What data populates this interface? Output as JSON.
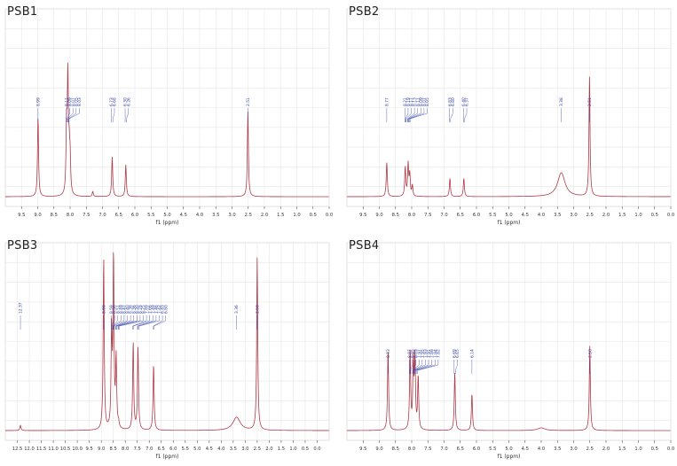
{
  "chart_data": [
    {
      "type": "line",
      "title": "PSB1",
      "xlabel": "f1 (ppm)",
      "xlim": [
        10.0,
        0.0
      ],
      "x_reversed": true,
      "xticks": [
        9.5,
        9.0,
        8.5,
        8.0,
        7.5,
        7.0,
        6.5,
        6.0,
        5.5,
        5.0,
        4.5,
        4.0,
        3.5,
        3.0,
        2.5,
        2.0,
        1.5,
        1.0,
        0.5,
        0.0
      ],
      "grid": true,
      "line_color": "#b03a48",
      "label_color": "#3344aa",
      "peaks": [
        {
          "x": 8.99,
          "y": 0.3
        },
        {
          "x": 8.11,
          "y": 0.24
        },
        {
          "x": 8.07,
          "y": 0.43
        },
        {
          "x": 8.03,
          "y": 0.14
        },
        {
          "x": 8.0,
          "y": 0.13
        },
        {
          "x": 7.3,
          "y": 0.02
        },
        {
          "x": 6.7,
          "y": 0.15
        },
        {
          "x": 6.28,
          "y": 0.12
        },
        {
          "x": 2.51,
          "y": 0.32
        }
      ],
      "peak_labels": [
        {
          "x": 8.99,
          "text": "8.99"
        },
        {
          "x": 8.11,
          "text": "8.11"
        },
        {
          "x": 8.09,
          "text": "8.09"
        },
        {
          "x": 8.07,
          "text": "8.07"
        },
        {
          "x": 8.05,
          "text": "8.05"
        },
        {
          "x": 8.03,
          "text": "8.03"
        },
        {
          "x": 6.73,
          "text": "6.73"
        },
        {
          "x": 6.68,
          "text": "6.68"
        },
        {
          "x": 6.3,
          "text": "6.30"
        },
        {
          "x": 6.26,
          "text": "6.26"
        },
        {
          "x": 2.51,
          "text": "2.51"
        }
      ]
    },
    {
      "type": "line",
      "title": "PSB2",
      "xlabel": "f1 (ppm)",
      "xlim": [
        10.0,
        0.0
      ],
      "x_reversed": true,
      "xticks": [
        9.5,
        9.0,
        8.5,
        8.0,
        7.5,
        7.0,
        6.5,
        6.0,
        5.5,
        5.0,
        4.5,
        4.0,
        3.5,
        3.0,
        2.5,
        2.0,
        1.5,
        1.0,
        0.5,
        0.0
      ],
      "grid": true,
      "line_color": "#b03a48",
      "label_color": "#3344aa",
      "peaks": [
        {
          "x": 8.77,
          "y": 0.13
        },
        {
          "x": 8.2,
          "y": 0.11
        },
        {
          "x": 8.11,
          "y": 0.12
        },
        {
          "x": 8.06,
          "y": 0.08
        },
        {
          "x": 7.98,
          "y": 0.04
        },
        {
          "x": 6.82,
          "y": 0.07
        },
        {
          "x": 6.39,
          "y": 0.07
        },
        {
          "x": 3.38,
          "y": 0.09,
          "broad": true
        },
        {
          "x": 2.51,
          "y": 0.45
        }
      ],
      "peak_labels": [
        {
          "x": 8.77,
          "text": "8.77"
        },
        {
          "x": 8.21,
          "text": "8.21"
        },
        {
          "x": 8.19,
          "text": "8.19"
        },
        {
          "x": 8.17,
          "text": "8.17"
        },
        {
          "x": 8.13,
          "text": "8.13"
        },
        {
          "x": 8.11,
          "text": "8.11"
        },
        {
          "x": 8.09,
          "text": "8.09"
        },
        {
          "x": 8.07,
          "text": "8.07"
        },
        {
          "x": 8.05,
          "text": "8.05"
        },
        {
          "x": 6.83,
          "text": "6.83"
        },
        {
          "x": 6.8,
          "text": "6.80"
        },
        {
          "x": 6.4,
          "text": "6.40"
        },
        {
          "x": 6.37,
          "text": "6.37"
        },
        {
          "x": 3.38,
          "text": "3.38"
        },
        {
          "x": 2.51,
          "text": "2.51"
        }
      ]
    },
    {
      "type": "line",
      "title": "PSB3",
      "xlabel": "f1 (ppm)",
      "xlim": [
        13.0,
        -0.5
      ],
      "x_reversed": true,
      "xticks": [
        12.5,
        12.0,
        11.5,
        11.0,
        10.5,
        10.0,
        9.5,
        9.0,
        8.5,
        8.0,
        7.5,
        7.0,
        6.5,
        6.0,
        5.5,
        5.0,
        4.5,
        4.0,
        3.5,
        3.0,
        2.5,
        2.0,
        1.5,
        1.0,
        0.5,
        0.0
      ],
      "grid": true,
      "line_color": "#b03a48",
      "label_color": "#3344aa",
      "peaks": [
        {
          "x": 12.37,
          "y": 0.02
        },
        {
          "x": 8.9,
          "y": 0.65
        },
        {
          "x": 8.57,
          "y": 0.36
        },
        {
          "x": 8.49,
          "y": 0.64
        },
        {
          "x": 8.38,
          "y": 0.26
        },
        {
          "x": 8.28,
          "y": 0.02
        },
        {
          "x": 7.67,
          "y": 0.33
        },
        {
          "x": 7.47,
          "y": 0.31
        },
        {
          "x": 6.82,
          "y": 0.25
        },
        {
          "x": 3.36,
          "y": 0.05,
          "broad": true
        },
        {
          "x": 2.5,
          "y": 0.65
        }
      ],
      "peak_labels": [
        {
          "x": 12.37,
          "text": "12.37"
        },
        {
          "x": 8.9,
          "text": "8.90"
        },
        {
          "x": 8.58,
          "text": "8.58"
        },
        {
          "x": 8.56,
          "text": "8.56"
        },
        {
          "x": 8.51,
          "text": "8.51"
        },
        {
          "x": 8.49,
          "text": "8.49"
        },
        {
          "x": 8.47,
          "text": "8.47"
        },
        {
          "x": 8.4,
          "text": "8.40"
        },
        {
          "x": 8.38,
          "text": "8.38"
        },
        {
          "x": 8.36,
          "text": "8.36"
        },
        {
          "x": 8.3,
          "text": "8.30"
        },
        {
          "x": 8.28,
          "text": "8.28"
        },
        {
          "x": 8.25,
          "text": "8.25"
        },
        {
          "x": 7.69,
          "text": "7.69"
        },
        {
          "x": 7.66,
          "text": "7.66"
        },
        {
          "x": 7.49,
          "text": "7.49"
        },
        {
          "x": 7.46,
          "text": "7.46"
        },
        {
          "x": 7.42,
          "text": "7.42"
        },
        {
          "x": 6.83,
          "text": "6.83"
        },
        {
          "x": 6.8,
          "text": "6.80"
        },
        {
          "x": 3.36,
          "text": "3.36"
        },
        {
          "x": 2.5,
          "text": "2.50"
        }
      ]
    },
    {
      "type": "line",
      "title": "PSB4",
      "xlabel": "f1 (ppm)",
      "xlim": [
        10.0,
        0.0
      ],
      "x_reversed": true,
      "xticks": [
        9.5,
        9.0,
        8.5,
        8.0,
        7.5,
        7.0,
        6.5,
        6.0,
        5.5,
        5.0,
        4.5,
        4.0,
        3.5,
        3.0,
        2.5,
        2.0,
        1.5,
        1.0,
        0.5,
        0.0
      ],
      "grid": true,
      "line_color": "#b03a48",
      "label_color": "#3344aa",
      "peaks": [
        {
          "x": 8.73,
          "y": 0.31
        },
        {
          "x": 8.05,
          "y": 0.3
        },
        {
          "x": 7.95,
          "y": 0.25
        },
        {
          "x": 7.9,
          "y": 0.26
        },
        {
          "x": 7.8,
          "y": 0.2
        },
        {
          "x": 6.67,
          "y": 0.22
        },
        {
          "x": 6.14,
          "y": 0.14
        },
        {
          "x": 4.0,
          "y": 0.01,
          "broad": true
        },
        {
          "x": 2.5,
          "y": 0.32
        }
      ],
      "peak_labels": [
        {
          "x": 8.73,
          "text": "8.73"
        },
        {
          "x": 8.07,
          "text": "8.07"
        },
        {
          "x": 8.05,
          "text": "8.05"
        },
        {
          "x": 8.03,
          "text": "8.03"
        },
        {
          "x": 7.97,
          "text": "7.97"
        },
        {
          "x": 7.95,
          "text": "7.95"
        },
        {
          "x": 7.93,
          "text": "7.93"
        },
        {
          "x": 7.91,
          "text": "7.91"
        },
        {
          "x": 7.88,
          "text": "7.88"
        },
        {
          "x": 7.84,
          "text": "7.84"
        },
        {
          "x": 7.82,
          "text": "7.82"
        },
        {
          "x": 6.69,
          "text": "6.69"
        },
        {
          "x": 6.65,
          "text": "6.65"
        },
        {
          "x": 6.14,
          "text": "6.14"
        },
        {
          "x": 2.5,
          "text": "2.50"
        }
      ]
    }
  ]
}
